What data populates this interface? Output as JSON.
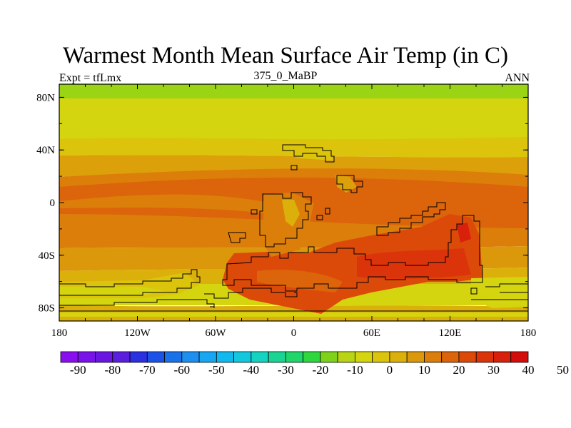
{
  "title": "Warmest Month Mean Surface Air Temp (in C)",
  "subtitle_left": "Expt = tfLmx",
  "subtitle_center": "375_0_MaBP",
  "subtitle_right": "ANN",
  "x_ticks": [
    "180",
    "120W",
    "60W",
    "0",
    "60E",
    "120E",
    "180"
  ],
  "y_ticks": [
    "80N",
    "40N",
    "0",
    "40S",
    "80S"
  ],
  "colorbar": {
    "labels": [
      "-90",
      "-80",
      "-70",
      "-60",
      "-50",
      "-40",
      "-30",
      "-20",
      "-10",
      "0",
      "10",
      "20",
      "30",
      "40",
      "50"
    ],
    "colors": [
      "#8a0ff0",
      "#7a12ea",
      "#6a16e3",
      "#5a1fdc",
      "#2b30e0",
      "#1d52e6",
      "#1a72ea",
      "#1c8ff0",
      "#17a6f1",
      "#12b9ee",
      "#13c7dd",
      "#14d3c0",
      "#1ad494",
      "#20d66a",
      "#2ed640",
      "#7fd21a",
      "#b8d414",
      "#d4d40f",
      "#dcc40c",
      "#dcb00b",
      "#dc980b",
      "#dc7e0a",
      "#dc640a",
      "#dc4a0a",
      "#dc340a",
      "#d8200a",
      "#d40c0a"
    ]
  },
  "colors": {
    "hot": "#e0440a",
    "warm": "#dc720a",
    "mild": "#dca00b",
    "cool": "#d8c80d",
    "cold": "#c8d410",
    "coldest": "#9ad414"
  }
}
